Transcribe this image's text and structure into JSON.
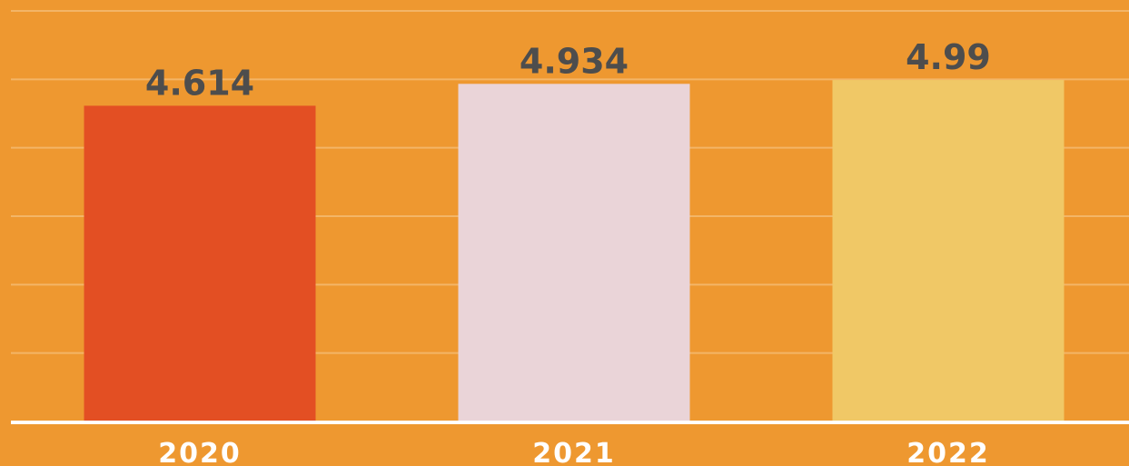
{
  "chart_data": {
    "type": "bar",
    "categories": [
      "2020",
      "2021",
      "2022"
    ],
    "values": [
      4.614,
      4.934,
      4.99
    ],
    "colors": [
      "#e34f23",
      "#ead4d8",
      "#f0c866"
    ],
    "ylim": [
      0,
      6
    ],
    "yticks": [
      0,
      1,
      2,
      3,
      4,
      5,
      6
    ],
    "grid": true
  }
}
